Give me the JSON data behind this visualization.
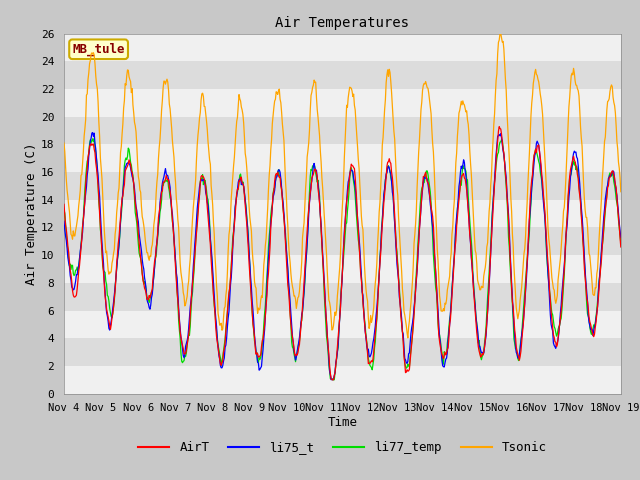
{
  "title": "Air Temperatures",
  "xlabel": "Time",
  "ylabel": "Air Temperature (C)",
  "ylim": [
    0,
    26
  ],
  "yticks": [
    0,
    2,
    4,
    6,
    8,
    10,
    12,
    14,
    16,
    18,
    20,
    22,
    24,
    26
  ],
  "xtick_labels": [
    "Nov 4",
    "Nov 5",
    "Nov 6",
    "Nov 7",
    "Nov 8",
    "Nov 9",
    "Nov 10",
    "Nov 11",
    "Nov 12",
    "Nov 13",
    "Nov 14",
    "Nov 15",
    "Nov 16",
    "Nov 17",
    "Nov 18",
    "Nov 19"
  ],
  "colors": {
    "AirT": "#ff0000",
    "li75_t": "#0000ff",
    "li77_temp": "#00dd00",
    "Tsonic": "#ffa500"
  },
  "label_box_text": "MB_tule",
  "label_box_facecolor": "#ffffcc",
  "label_box_edgecolor": "#ccaa00",
  "label_text_color": "#880000",
  "fig_facecolor": "#c8c8c8",
  "band_light": "#f0f0f0",
  "band_dark": "#dcdcdc",
  "n_points": 720,
  "seed": 42
}
